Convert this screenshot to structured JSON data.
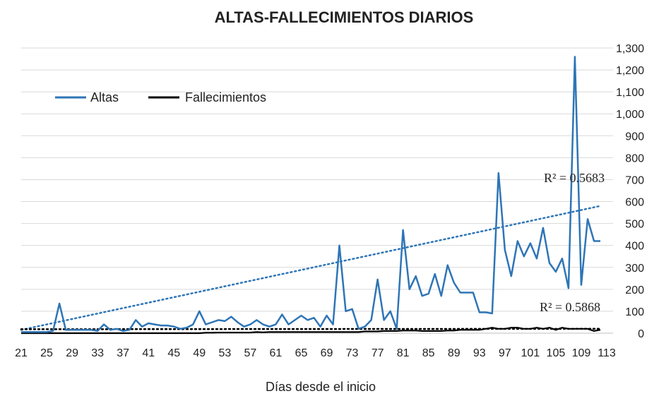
{
  "chart_data": {
    "type": "line",
    "title": "ALTAS-FALLECIMIENTOS DIARIOS",
    "xlabel": "Días desde el inicio",
    "ylabel": "",
    "ylim": [
      0,
      1300
    ],
    "y_ticks": [
      "0",
      "100",
      "200",
      "300",
      "400",
      "500",
      "600",
      "700",
      "800",
      "900",
      "1,000",
      "1,100",
      "1,200",
      "1,300"
    ],
    "x_ticks": [
      "21",
      "25",
      "29",
      "33",
      "37",
      "41",
      "45",
      "49",
      "53",
      "57",
      "61",
      "65",
      "69",
      "73",
      "77",
      "81",
      "85",
      "89",
      "93",
      "97",
      "101",
      "105",
      "109",
      "113"
    ],
    "legend": {
      "position": "top-left"
    },
    "grid": true,
    "x": [
      21,
      22,
      23,
      24,
      25,
      26,
      27,
      28,
      29,
      30,
      31,
      32,
      33,
      34,
      35,
      36,
      37,
      38,
      39,
      40,
      41,
      42,
      43,
      44,
      45,
      46,
      47,
      48,
      49,
      50,
      51,
      52,
      53,
      54,
      55,
      56,
      57,
      58,
      59,
      60,
      61,
      62,
      63,
      64,
      65,
      66,
      67,
      68,
      69,
      70,
      71,
      72,
      73,
      74,
      75,
      76,
      77,
      78,
      79,
      80,
      81,
      82,
      83,
      84,
      85,
      86,
      87,
      88,
      89,
      90,
      91,
      92,
      93,
      94,
      95,
      96,
      97,
      98,
      99,
      100,
      101,
      102,
      103,
      104,
      105,
      106,
      107,
      108,
      109,
      110,
      111,
      112
    ],
    "series": [
      {
        "name": "Altas",
        "color": "#2e75b6",
        "values": [
          5,
          5,
          5,
          5,
          5,
          10,
          135,
          15,
          15,
          15,
          15,
          15,
          10,
          40,
          15,
          20,
          10,
          15,
          60,
          30,
          45,
          40,
          35,
          35,
          30,
          20,
          25,
          40,
          100,
          40,
          50,
          60,
          55,
          75,
          50,
          30,
          40,
          60,
          40,
          30,
          40,
          85,
          40,
          60,
          80,
          60,
          70,
          30,
          80,
          40,
          400,
          100,
          110,
          20,
          30,
          60,
          245,
          60,
          100,
          20,
          470,
          200,
          260,
          170,
          180,
          270,
          170,
          310,
          230,
          185,
          185,
          185,
          95,
          95,
          90,
          730,
          380,
          260,
          420,
          350,
          410,
          340,
          480,
          320,
          280,
          340,
          205,
          1260,
          220,
          520,
          420,
          420
        ]
      },
      {
        "name": "Fallecimientos",
        "color": "#000000",
        "values": [
          0,
          0,
          0,
          0,
          0,
          0,
          0,
          0,
          0,
          0,
          0,
          0,
          0,
          0,
          0,
          0,
          0,
          0,
          0,
          0,
          0,
          0,
          0,
          0,
          0,
          0,
          0,
          0,
          0,
          2,
          2,
          3,
          3,
          3,
          3,
          3,
          3,
          5,
          4,
          5,
          5,
          5,
          5,
          5,
          5,
          5,
          5,
          5,
          5,
          5,
          5,
          5,
          5,
          5,
          8,
          8,
          8,
          10,
          10,
          10,
          12,
          12,
          12,
          10,
          10,
          10,
          10,
          12,
          12,
          15,
          15,
          15,
          15,
          20,
          25,
          20,
          20,
          25,
          25,
          20,
          20,
          25,
          20,
          25,
          15,
          25,
          20,
          20,
          20,
          20,
          10,
          15
        ]
      }
    ],
    "trendlines": [
      {
        "series": "Altas",
        "r2_label": "R² = 0.5683",
        "start": 15,
        "end": 580
      },
      {
        "series": "Fallecimientos",
        "r2_label": "R² = 0.5868",
        "start": 18,
        "end": 20
      }
    ]
  }
}
